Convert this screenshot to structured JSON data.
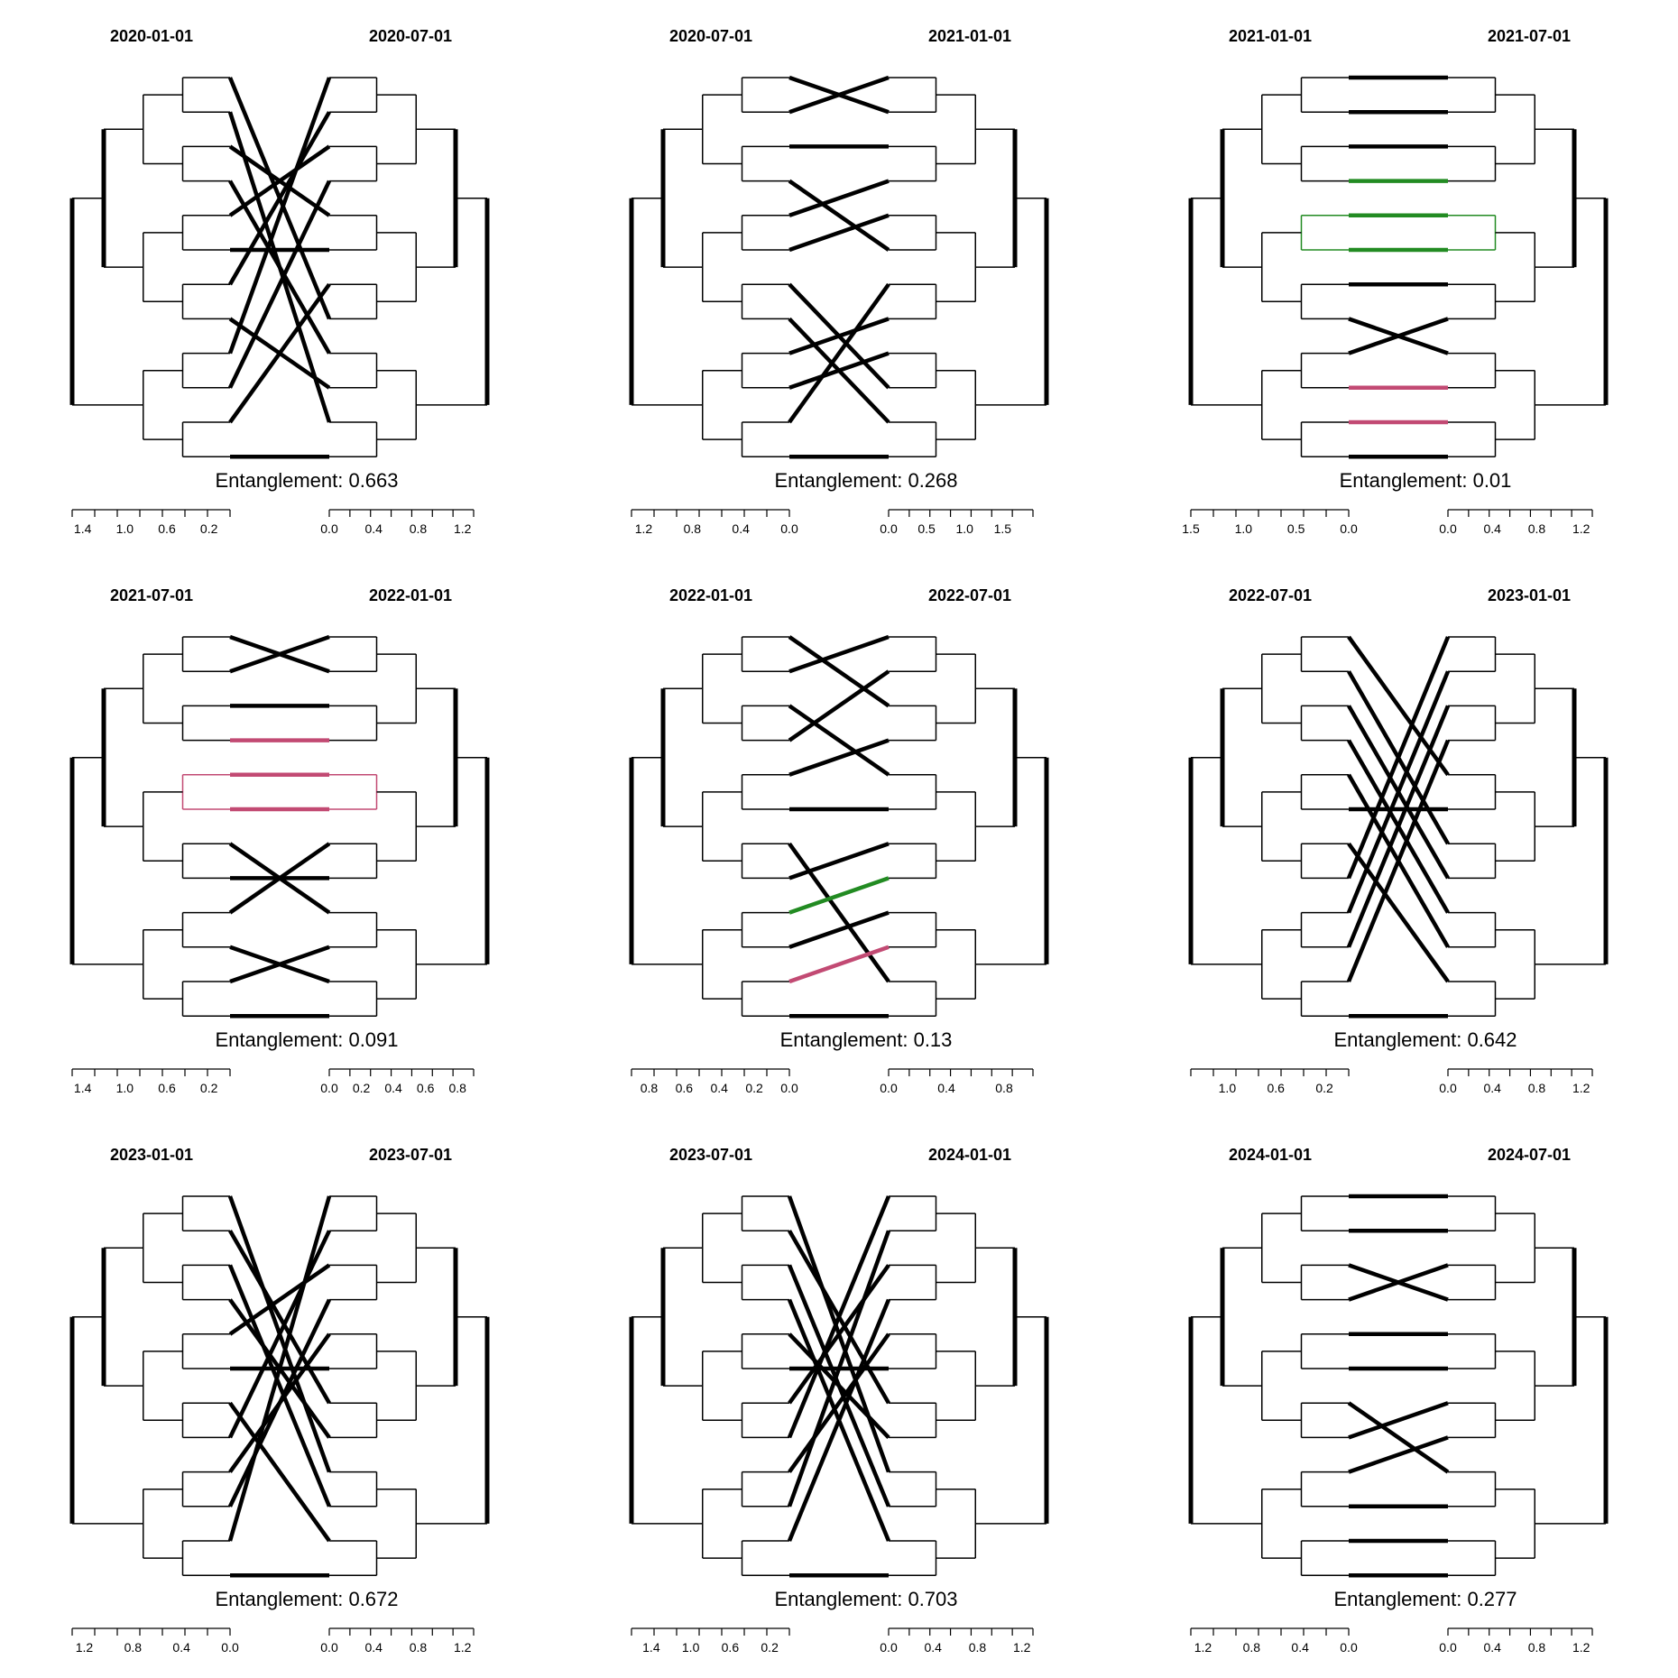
{
  "chart_data": [
    {
      "type": "tanglegram",
      "left_label": "2020-01-01",
      "right_label": "2020-07-01",
      "entanglement_text": "Entanglement: 0.663",
      "left_axis": {
        "max": 1.5,
        "ticks": [
          "1.4",
          "1.0",
          "0.6",
          "0.2"
        ]
      },
      "right_axis": {
        "max": 1.3,
        "ticks": [
          "0.0",
          "0.4",
          "0.8",
          "1.2"
        ]
      },
      "links": [
        [
          0,
          7
        ],
        [
          1,
          10
        ],
        [
          2,
          4
        ],
        [
          3,
          8
        ],
        [
          4,
          2
        ],
        [
          5,
          5
        ],
        [
          6,
          1
        ],
        [
          7,
          9
        ],
        [
          8,
          0
        ],
        [
          9,
          3
        ],
        [
          10,
          6
        ],
        [
          11,
          11
        ]
      ],
      "highlights": []
    },
    {
      "type": "tanglegram",
      "left_label": "2020-07-01",
      "right_label": "2021-01-01",
      "entanglement_text": "Entanglement: 0.268",
      "left_axis": {
        "max": 1.3,
        "ticks": [
          "1.2",
          "0.8",
          "0.4",
          "0.0"
        ]
      },
      "right_axis": {
        "max": 1.9,
        "ticks": [
          "0.0",
          "0.5",
          "1.0",
          "1.5"
        ]
      },
      "links": [
        [
          0,
          1
        ],
        [
          1,
          0
        ],
        [
          2,
          2
        ],
        [
          3,
          5
        ],
        [
          4,
          3
        ],
        [
          5,
          4
        ],
        [
          6,
          9
        ],
        [
          7,
          10
        ],
        [
          8,
          7
        ],
        [
          9,
          8
        ],
        [
          10,
          6
        ],
        [
          11,
          11
        ]
      ],
      "highlights": []
    },
    {
      "type": "tanglegram",
      "left_label": "2021-01-01",
      "right_label": "2021-07-01",
      "entanglement_text": "Entanglement: 0.01",
      "left_axis": {
        "max": 1.5,
        "ticks": [
          "1.5",
          "1.0",
          "0.5",
          "0.0"
        ]
      },
      "right_axis": {
        "max": 1.3,
        "ticks": [
          "0.0",
          "0.4",
          "0.8",
          "1.2"
        ]
      },
      "links": [
        [
          0,
          0
        ],
        [
          1,
          1
        ],
        [
          2,
          2
        ],
        [
          3,
          3
        ],
        [
          4,
          4
        ],
        [
          5,
          5
        ],
        [
          6,
          6
        ],
        [
          7,
          8
        ],
        [
          8,
          7
        ],
        [
          9,
          9
        ],
        [
          10,
          10
        ],
        [
          11,
          11
        ]
      ],
      "highlights": [
        {
          "color": "#228b22",
          "rows": [
            3,
            4,
            5
          ]
        },
        {
          "color": "#c24a73",
          "rows": [
            9,
            10
          ]
        }
      ]
    },
    {
      "type": "tanglegram",
      "left_label": "2021-07-01",
      "right_label": "2022-01-01",
      "entanglement_text": "Entanglement: 0.091",
      "left_axis": {
        "max": 1.5,
        "ticks": [
          "1.4",
          "1.0",
          "0.6",
          "0.2"
        ]
      },
      "right_axis": {
        "max": 0.9,
        "ticks": [
          "0.0",
          "0.2",
          "0.4",
          "0.6",
          "0.8"
        ]
      },
      "links": [
        [
          0,
          1
        ],
        [
          1,
          0
        ],
        [
          2,
          2
        ],
        [
          3,
          3
        ],
        [
          4,
          4
        ],
        [
          5,
          5
        ],
        [
          6,
          8
        ],
        [
          7,
          7
        ],
        [
          8,
          6
        ],
        [
          9,
          10
        ],
        [
          10,
          9
        ],
        [
          11,
          11
        ]
      ],
      "highlights": [
        {
          "color": "#c24a73",
          "rows": [
            3,
            4,
            5
          ]
        }
      ]
    },
    {
      "type": "tanglegram",
      "left_label": "2022-01-01",
      "right_label": "2022-07-01",
      "entanglement_text": "Entanglement: 0.13",
      "left_axis": {
        "max": 0.9,
        "ticks": [
          "0.8",
          "0.6",
          "0.4",
          "0.2",
          "0.0"
        ]
      },
      "right_axis": {
        "max": 1.0,
        "ticks": [
          "0.0",
          "0.4",
          "0.8"
        ]
      },
      "links": [
        [
          0,
          2
        ],
        [
          1,
          0
        ],
        [
          2,
          4
        ],
        [
          3,
          1
        ],
        [
          4,
          3
        ],
        [
          5,
          5
        ],
        [
          6,
          10
        ],
        [
          7,
          6
        ],
        [
          8,
          7
        ],
        [
          9,
          8
        ],
        [
          10,
          9
        ],
        [
          11,
          11
        ]
      ],
      "highlights": [
        {
          "color": "#228b22",
          "rows": [
            7,
            8
          ]
        },
        {
          "color": "#c24a73",
          "rows": [
            9,
            10
          ]
        }
      ]
    },
    {
      "type": "tanglegram",
      "left_label": "2022-07-01",
      "right_label": "2023-01-01",
      "entanglement_text": "Entanglement: 0.642",
      "left_axis": {
        "max": 1.3,
        "ticks": [
          "1.0",
          "0.6",
          "0.2"
        ]
      },
      "right_axis": {
        "max": 1.3,
        "ticks": [
          "0.0",
          "0.4",
          "0.8",
          "1.2"
        ]
      },
      "links": [
        [
          0,
          4
        ],
        [
          1,
          6
        ],
        [
          2,
          7
        ],
        [
          3,
          8
        ],
        [
          4,
          9
        ],
        [
          5,
          5
        ],
        [
          6,
          10
        ],
        [
          7,
          0
        ],
        [
          8,
          1
        ],
        [
          9,
          2
        ],
        [
          10,
          3
        ],
        [
          11,
          11
        ]
      ],
      "highlights": []
    },
    {
      "type": "tanglegram",
      "left_label": "2023-01-01",
      "right_label": "2023-07-01",
      "entanglement_text": "Entanglement: 0.672",
      "left_axis": {
        "max": 1.3,
        "ticks": [
          "1.2",
          "0.8",
          "0.4",
          "0.0"
        ]
      },
      "right_axis": {
        "max": 1.3,
        "ticks": [
          "0.0",
          "0.4",
          "0.8",
          "1.2"
        ]
      },
      "links": [
        [
          0,
          8
        ],
        [
          1,
          6
        ],
        [
          2,
          9
        ],
        [
          3,
          7
        ],
        [
          4,
          2
        ],
        [
          5,
          5
        ],
        [
          6,
          10
        ],
        [
          7,
          1
        ],
        [
          8,
          4
        ],
        [
          9,
          3
        ],
        [
          10,
          0
        ],
        [
          11,
          11
        ]
      ],
      "highlights": []
    },
    {
      "type": "tanglegram",
      "left_label": "2023-07-01",
      "right_label": "2024-01-01",
      "entanglement_text": "Entanglement: 0.703",
      "left_axis": {
        "max": 1.6,
        "ticks": [
          "1.4",
          "1.0",
          "0.6",
          "0.2"
        ]
      },
      "right_axis": {
        "max": 1.3,
        "ticks": [
          "0.0",
          "0.4",
          "0.8",
          "1.2"
        ]
      },
      "links": [
        [
          0,
          8
        ],
        [
          1,
          6
        ],
        [
          2,
          9
        ],
        [
          3,
          10
        ],
        [
          4,
          7
        ],
        [
          5,
          5
        ],
        [
          6,
          2
        ],
        [
          7,
          0
        ],
        [
          8,
          4
        ],
        [
          9,
          1
        ],
        [
          10,
          3
        ],
        [
          11,
          11
        ]
      ],
      "highlights": []
    },
    {
      "type": "tanglegram",
      "left_label": "2024-01-01",
      "right_label": "2024-07-01",
      "entanglement_text": "Entanglement: 0.277",
      "left_axis": {
        "max": 1.3,
        "ticks": [
          "1.2",
          "0.8",
          "0.4",
          "0.0"
        ]
      },
      "right_axis": {
        "max": 1.3,
        "ticks": [
          "0.0",
          "0.4",
          "0.8",
          "1.2"
        ]
      },
      "links": [
        [
          0,
          0
        ],
        [
          1,
          1
        ],
        [
          2,
          3
        ],
        [
          3,
          2
        ],
        [
          4,
          4
        ],
        [
          5,
          5
        ],
        [
          6,
          8
        ],
        [
          7,
          6
        ],
        [
          8,
          7
        ],
        [
          9,
          9
        ],
        [
          10,
          10
        ],
        [
          11,
          11
        ]
      ],
      "highlights": []
    }
  ]
}
